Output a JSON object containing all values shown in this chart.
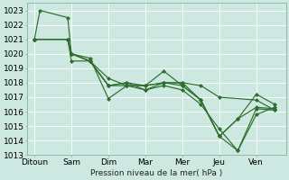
{
  "xlabel": "Pression niveau de la mer( hPa )",
  "background_color": "#cce8e0",
  "grid_color": "#ffffff",
  "line_color": "#2d6e2d",
  "ylim": [
    1013,
    1023.5
  ],
  "yticks": [
    1013,
    1014,
    1015,
    1016,
    1017,
    1018,
    1019,
    1020,
    1021,
    1022,
    1023
  ],
  "xlabels": [
    "Ditoun",
    "Sam",
    "Dim",
    "Mar",
    "Mer",
    "Jeu",
    "Ven"
  ],
  "xtick_positions": [
    0,
    1,
    2,
    3,
    4,
    5,
    6
  ],
  "series": [
    {
      "x": [
        0.0,
        0.15,
        0.9,
        1.0,
        1.5,
        2.0,
        2.5,
        3.0,
        3.5,
        4.0,
        4.5,
        5.0,
        6.0,
        6.5
      ],
      "y": [
        1021.0,
        1023.0,
        1022.5,
        1020.0,
        1019.5,
        1017.8,
        1018.0,
        1017.8,
        1018.0,
        1018.0,
        1017.8,
        1017.0,
        1016.8,
        1016.1
      ]
    },
    {
      "x": [
        0.0,
        0.9,
        1.0,
        1.5,
        2.0,
        2.5,
        3.0,
        3.5,
        4.0,
        4.5,
        5.0,
        5.5,
        6.0,
        6.5
      ],
      "y": [
        1021.0,
        1021.0,
        1020.0,
        1019.5,
        1018.3,
        1017.8,
        1017.8,
        1018.0,
        1018.0,
        1016.8,
        1014.3,
        1013.3,
        1016.2,
        1016.1
      ]
    },
    {
      "x": [
        0.0,
        0.9,
        1.0,
        1.5,
        2.0,
        2.5,
        3.0,
        3.5,
        4.0,
        4.5,
        5.0,
        5.5,
        6.0,
        6.5
      ],
      "y": [
        1021.0,
        1021.0,
        1020.0,
        1019.7,
        1016.9,
        1017.8,
        1017.8,
        1018.8,
        1017.8,
        1016.8,
        1014.3,
        1015.5,
        1017.2,
        1016.5
      ]
    },
    {
      "x": [
        0.0,
        0.9,
        1.0,
        1.5,
        2.0,
        2.5,
        3.0,
        3.5,
        4.0,
        4.5,
        5.0,
        5.5,
        6.0,
        6.5
      ],
      "y": [
        1021.0,
        1021.0,
        1019.5,
        1019.5,
        1017.8,
        1017.8,
        1017.5,
        1017.8,
        1017.5,
        1016.5,
        1014.8,
        1013.3,
        1015.8,
        1016.3
      ]
    },
    {
      "x": [
        0.0,
        0.9,
        1.0,
        1.5,
        2.0,
        2.5,
        3.0,
        3.5,
        4.0,
        4.5,
        5.0,
        5.5,
        6.0,
        6.5
      ],
      "y": [
        1021.0,
        1021.0,
        1020.0,
        1019.5,
        1017.8,
        1018.0,
        1017.5,
        1018.0,
        1017.8,
        1016.8,
        1014.3,
        1015.5,
        1016.3,
        1016.2
      ]
    }
  ],
  "label_fontsize": 6.5,
  "tick_fontsize": 6.5
}
